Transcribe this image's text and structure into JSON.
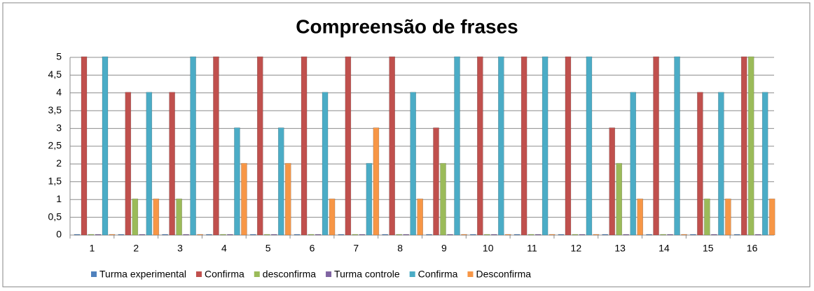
{
  "chart_data": {
    "type": "bar",
    "title": "Compreensão de frases",
    "categories": [
      "1",
      "2",
      "3",
      "4",
      "5",
      "6",
      "7",
      "8",
      "9",
      "10",
      "11",
      "12",
      "13",
      "14",
      "15",
      "16"
    ],
    "series": [
      {
        "name": "Turma experimental",
        "color": "#4f81bd",
        "values": [
          0,
          0,
          0,
          0,
          0,
          0,
          0,
          0,
          0,
          0,
          0,
          0,
          0,
          0,
          0,
          0
        ]
      },
      {
        "name": "Confirma",
        "color": "#c0504d",
        "values": [
          5,
          4,
          4,
          5,
          5,
          5,
          5,
          5,
          3,
          5,
          5,
          5,
          3,
          5,
          4,
          5
        ]
      },
      {
        "name": "desconfirma",
        "color": "#9bbb59",
        "values": [
          0,
          1,
          1,
          0,
          0,
          0,
          0,
          0,
          2,
          0,
          0,
          0,
          2,
          0,
          1,
          5
        ]
      },
      {
        "name": "Turma controle",
        "color": "#8064a2",
        "values": [
          0,
          0,
          0,
          0,
          0,
          0,
          0,
          0,
          0,
          0,
          0,
          0,
          0,
          0,
          0,
          0
        ]
      },
      {
        "name": "Confirma",
        "color": "#4bacc6",
        "values": [
          5,
          4,
          5,
          3,
          3,
          4,
          2,
          4,
          5,
          5,
          5,
          5,
          4,
          5,
          4,
          4
        ]
      },
      {
        "name": "Desconfirma",
        "color": "#f79646",
        "values": [
          0,
          1,
          0,
          2,
          2,
          1,
          3,
          1,
          0,
          0,
          0,
          0,
          1,
          0,
          1,
          1
        ]
      }
    ],
    "ylim": [
      0,
      5
    ],
    "yticks": [
      0,
      {
        "value": 0.5,
        "label": "0,5"
      },
      1,
      {
        "value": 1.5,
        "label": "1,5"
      },
      2,
      {
        "value": 2.5,
        "label": "2,5"
      },
      3,
      {
        "value": 3.5,
        "label": "3,5"
      },
      4,
      {
        "value": 4.5,
        "label": "4,5"
      },
      5
    ],
    "grid": true,
    "legend": "bottom"
  }
}
